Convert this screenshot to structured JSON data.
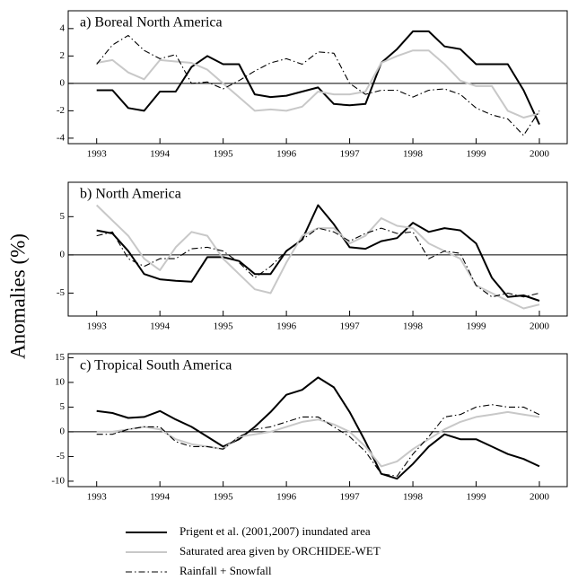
{
  "y_label": "Anomalies (%)",
  "chart_data": [
    {
      "type": "line",
      "title": "a) Boreal North America",
      "x": [
        1993,
        1993.25,
        1993.5,
        1993.75,
        1994,
        1994.25,
        1994.5,
        1994.75,
        1995,
        1995.25,
        1995.5,
        1995.75,
        1996,
        1996.25,
        1996.5,
        1996.75,
        1997,
        1997.25,
        1997.5,
        1997.75,
        1998,
        1998.25,
        1998.5,
        1998.75,
        1999,
        1999.25,
        1999.5,
        1999.75,
        2000
      ],
      "xlim": [
        1992.55,
        2000.44
      ],
      "xticks": [
        1993,
        1994,
        1995,
        1996,
        1997,
        1998,
        1999,
        2000
      ],
      "ylim": [
        -4.4,
        5.3
      ],
      "yticks": [
        -4,
        -2,
        0,
        2,
        4
      ],
      "zero_line": true,
      "series": [
        {
          "name": "Prigent et al. (2001,2007) inundated area",
          "color": "#000000",
          "style": "solid",
          "values": [
            -0.5,
            -0.5,
            -1.8,
            -2.0,
            -0.6,
            -0.6,
            1.2,
            2.0,
            1.4,
            1.4,
            -0.8,
            -1.0,
            -0.9,
            -0.6,
            -0.3,
            -1.5,
            -1.6,
            -1.5,
            1.5,
            2.5,
            3.8,
            3.8,
            2.7,
            2.5,
            1.4,
            1.4,
            1.4,
            -0.5,
            -3.0
          ]
        },
        {
          "name": "Saturated area given by ORCHIDEE-WET",
          "color": "#c8c8c8",
          "style": "solid",
          "values": [
            1.5,
            1.7,
            0.8,
            0.3,
            1.7,
            1.6,
            1.5,
            1.0,
            0.0,
            -1.0,
            -2.0,
            -1.9,
            -2.0,
            -1.7,
            -0.6,
            -0.8,
            -0.8,
            -0.6,
            1.5,
            2.0,
            2.4,
            2.4,
            1.4,
            0.2,
            -0.2,
            -0.2,
            -2.0,
            -2.5,
            -2.2
          ]
        },
        {
          "name": "Rainfall + Snowfall",
          "color": "#000000",
          "style": "dashdot",
          "values": [
            1.4,
            2.8,
            3.5,
            2.4,
            1.8,
            2.1,
            0.0,
            0.1,
            -0.4,
            0.2,
            0.9,
            1.5,
            1.8,
            1.4,
            2.3,
            2.2,
            0.0,
            -0.8,
            -0.5,
            -0.5,
            -1.0,
            -0.5,
            -0.4,
            -0.8,
            -1.8,
            -2.3,
            -2.6,
            -3.8,
            -2.0
          ]
        }
      ]
    },
    {
      "type": "line",
      "title": "b) North America",
      "x": [
        1993,
        1993.25,
        1993.5,
        1993.75,
        1994,
        1994.25,
        1994.5,
        1994.75,
        1995,
        1995.25,
        1995.5,
        1995.75,
        1996,
        1996.25,
        1996.5,
        1996.75,
        1997,
        1997.25,
        1997.5,
        1997.75,
        1998,
        1998.25,
        1998.5,
        1998.75,
        1999,
        1999.25,
        1999.5,
        1999.75,
        2000
      ],
      "xlim": [
        1992.55,
        2000.44
      ],
      "xticks": [
        1993,
        1994,
        1995,
        1996,
        1997,
        1998,
        1999,
        2000
      ],
      "ylim": [
        -8,
        9.5
      ],
      "yticks": [
        -5,
        0,
        5
      ],
      "zero_line": true,
      "series": [
        {
          "color": "#000000",
          "style": "solid",
          "values": [
            3.2,
            2.8,
            0.5,
            -2.5,
            -3.2,
            -3.4,
            -3.5,
            -0.3,
            -0.3,
            -0.8,
            -2.5,
            -2.5,
            0.5,
            2.0,
            6.5,
            4.0,
            1.0,
            0.8,
            1.8,
            2.2,
            4.2,
            3.0,
            3.5,
            3.2,
            1.5,
            -3.0,
            -5.5,
            -5.3,
            -6.0
          ]
        },
        {
          "color": "#c8c8c8",
          "style": "solid",
          "values": [
            6.5,
            4.5,
            2.5,
            -0.5,
            -2.0,
            1.0,
            3.0,
            2.5,
            -0.5,
            -2.5,
            -4.5,
            -5.0,
            -1.0,
            2.5,
            3.5,
            3.5,
            1.5,
            2.5,
            4.8,
            3.8,
            3.5,
            1.5,
            0.5,
            -0.5,
            -4.0,
            -5.0,
            -6.0,
            -7.0,
            -6.5
          ]
        },
        {
          "color": "#000000",
          "style": "dashdot",
          "values": [
            2.5,
            3.0,
            -0.5,
            -1.5,
            -0.5,
            -0.5,
            0.8,
            1.0,
            0.5,
            -1.0,
            -3.0,
            -1.5,
            0.5,
            2.0,
            3.5,
            3.0,
            1.8,
            2.8,
            3.5,
            2.8,
            3.0,
            -0.5,
            0.5,
            0.2,
            -4.0,
            -5.5,
            -5.0,
            -5.5,
            -5.0
          ]
        }
      ]
    },
    {
      "type": "line",
      "title": "c) Tropical South America",
      "x": [
        1993,
        1993.25,
        1993.5,
        1993.75,
        1994,
        1994.25,
        1994.5,
        1994.75,
        1995,
        1995.25,
        1995.5,
        1995.75,
        1996,
        1996.25,
        1996.5,
        1996.75,
        1997,
        1997.25,
        1997.5,
        1997.75,
        1998,
        1998.25,
        1998.5,
        1998.75,
        1999,
        1999.25,
        1999.5,
        1999.75,
        2000
      ],
      "xlim": [
        1992.55,
        2000.44
      ],
      "xticks": [
        1993,
        1994,
        1995,
        1996,
        1997,
        1998,
        1999,
        2000
      ],
      "ylim": [
        -11.1,
        15.8
      ],
      "yticks": [
        -10,
        -5,
        0,
        5,
        10,
        15
      ],
      "zero_line": true,
      "series": [
        {
          "color": "#000000",
          "style": "solid",
          "values": [
            4.2,
            3.8,
            2.8,
            3.0,
            4.2,
            2.5,
            1.0,
            -1.0,
            -3.0,
            -1.5,
            1.0,
            4.0,
            7.5,
            8.5,
            11.0,
            9.0,
            4.0,
            -2.0,
            -8.5,
            -9.5,
            -6.5,
            -3.0,
            -0.5,
            -1.5,
            -1.5,
            -3.0,
            -4.5,
            -5.5,
            -7.0
          ]
        },
        {
          "color": "#c8c8c8",
          "style": "solid",
          "values": [
            0,
            0,
            0.5,
            1.0,
            0.5,
            -1.5,
            -2.5,
            -3.0,
            -3.5,
            -1.0,
            -0.5,
            0,
            1.0,
            2.0,
            2.5,
            1.5,
            0,
            -3.0,
            -7.0,
            -6.0,
            -3.5,
            -1.5,
            0.5,
            2.0,
            3.0,
            3.5,
            4.0,
            3.5,
            3.0
          ]
        },
        {
          "color": "#000000",
          "style": "dashdot",
          "values": [
            -0.5,
            -0.5,
            0.5,
            1.0,
            1.0,
            -2.0,
            -3.0,
            -3.0,
            -3.5,
            -1.0,
            0.5,
            1.0,
            2.0,
            3.0,
            3.0,
            1.0,
            -1.0,
            -4.0,
            -8.5,
            -9.0,
            -4.5,
            -1.0,
            3.0,
            3.5,
            5.0,
            5.5,
            5.0,
            5.0,
            3.5
          ]
        }
      ]
    }
  ]
}
